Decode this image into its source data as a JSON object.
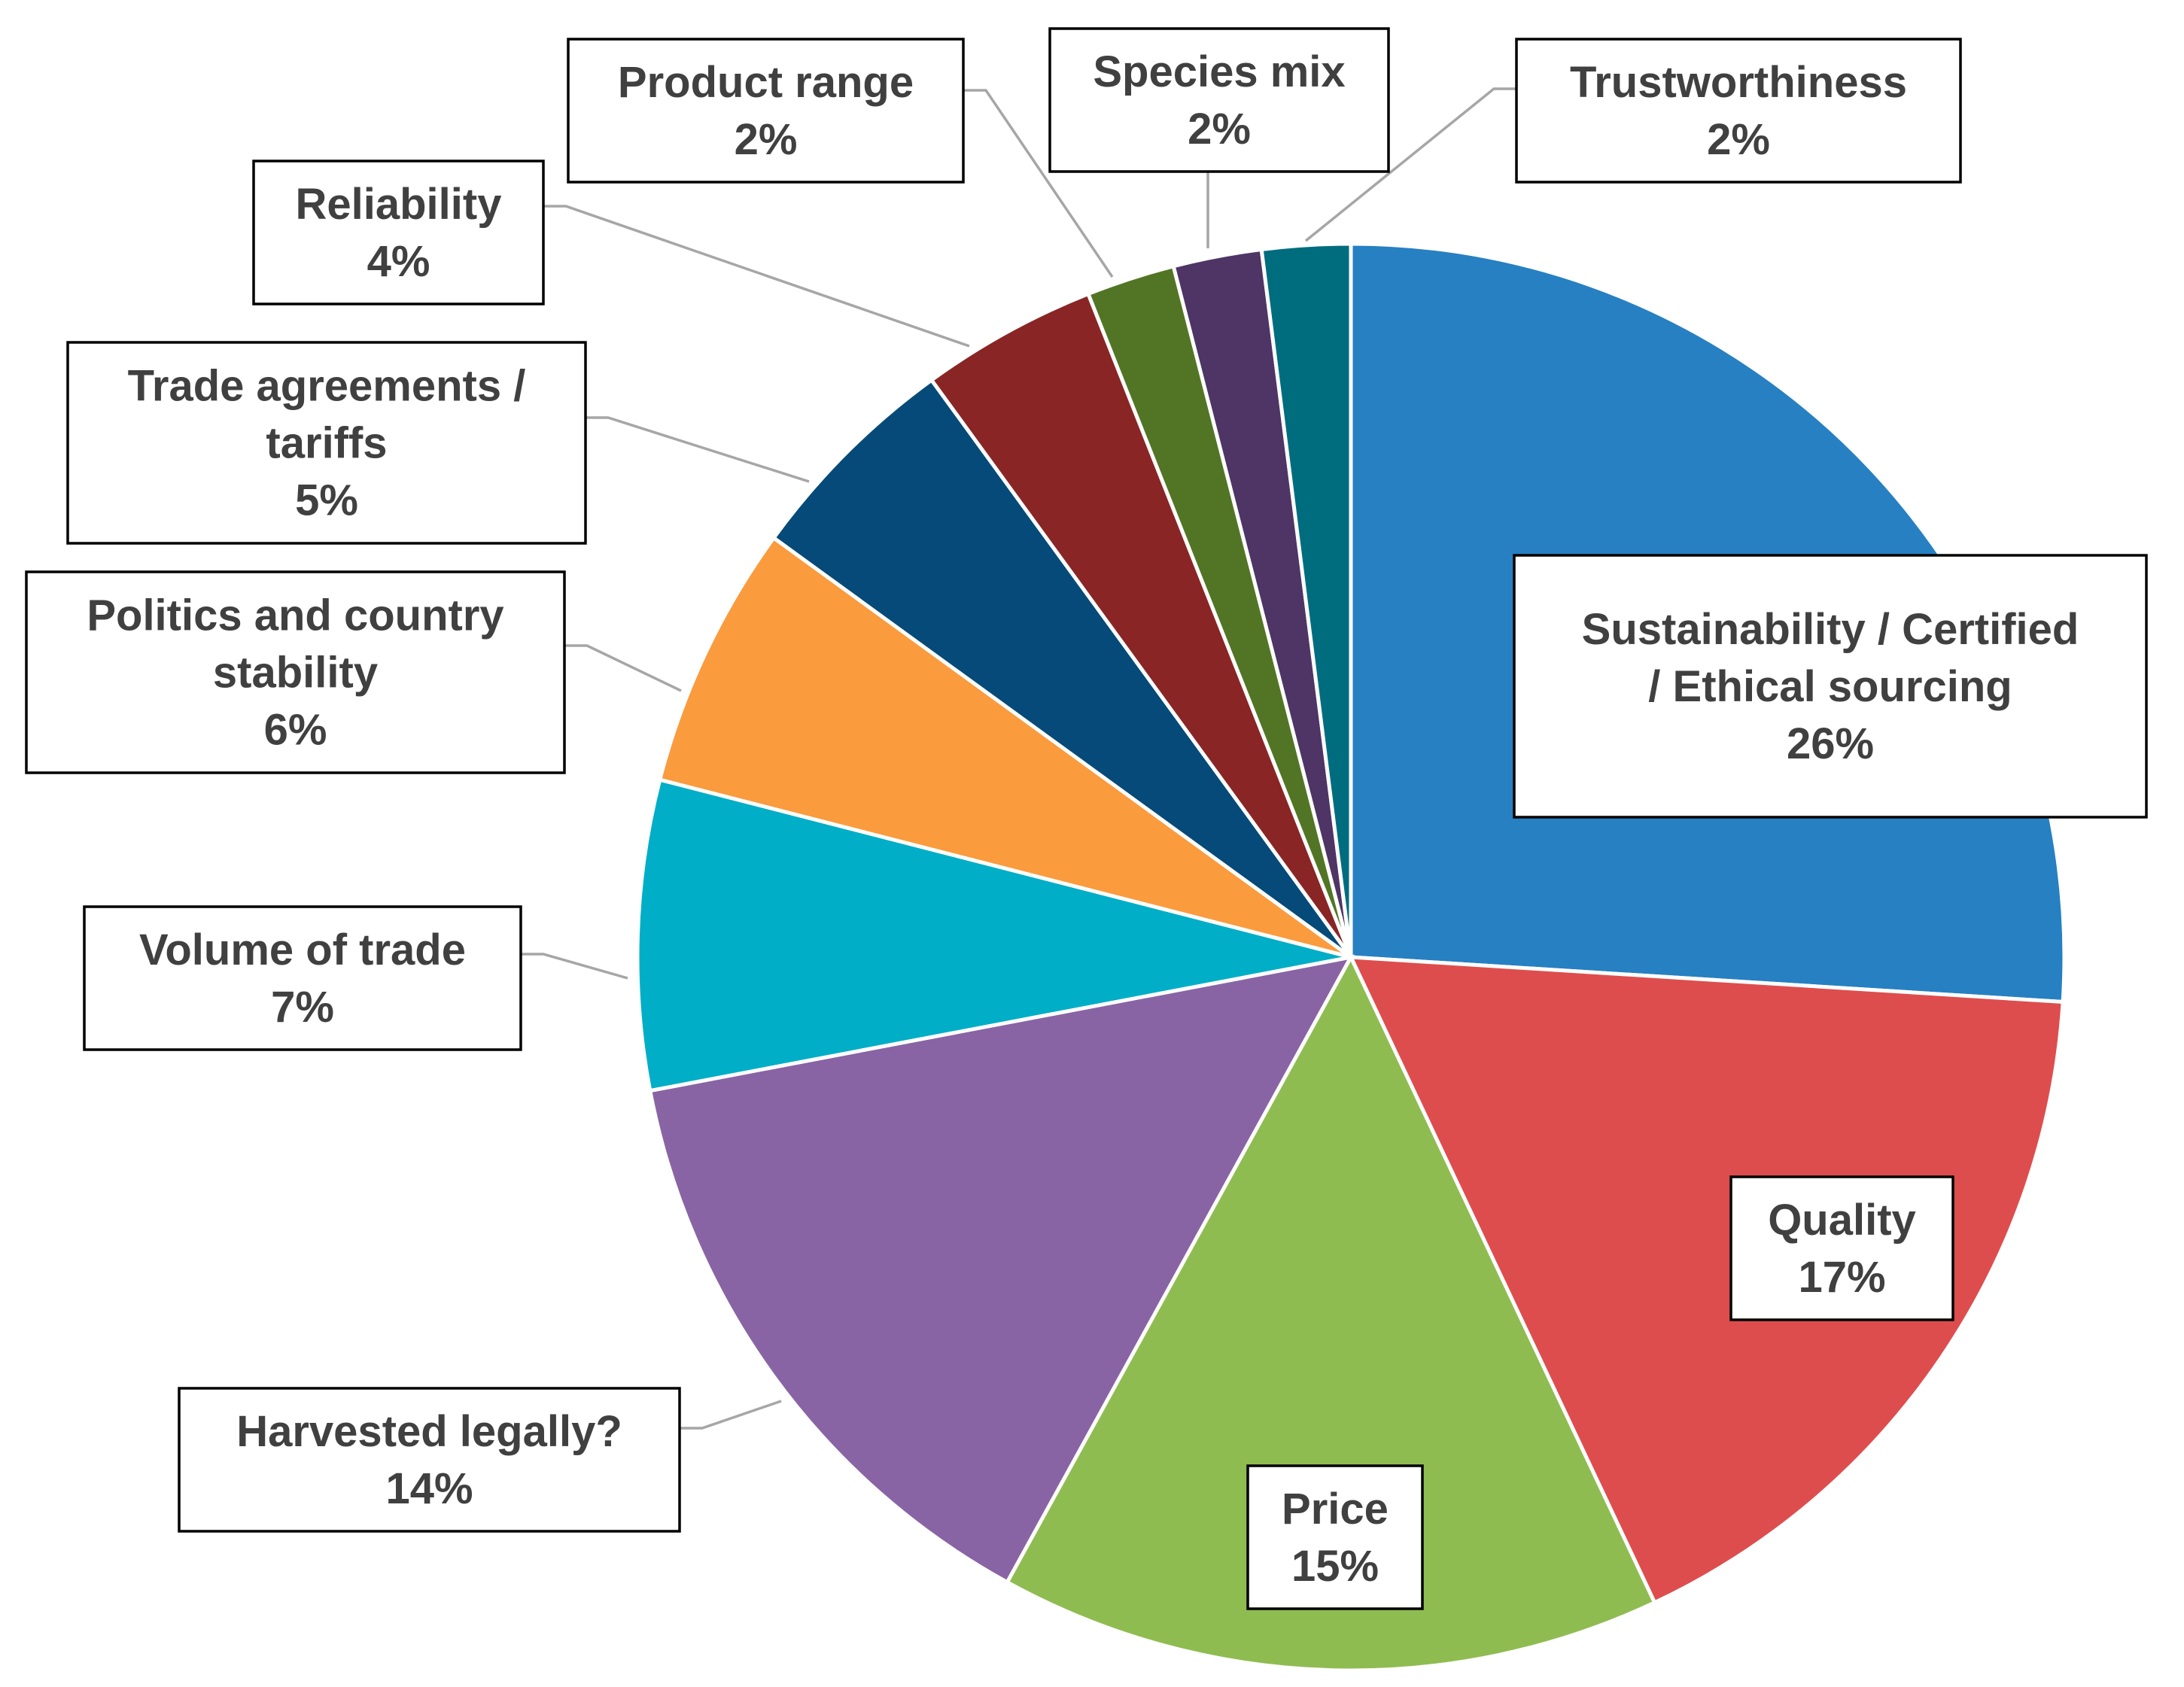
{
  "chart_data": {
    "type": "pie",
    "title": "",
    "start_angle_deg": 0,
    "direction": "clockwise",
    "slices": [
      {
        "label": [
          "Sustainability / Certified",
          "/ Ethical sourcing"
        ],
        "value": 26,
        "value_label": "26%",
        "color": "#2680c2",
        "leader": false
      },
      {
        "label": [
          "Quality"
        ],
        "value": 17,
        "value_label": "17%",
        "color": "#de4d4d",
        "leader": false
      },
      {
        "label": [
          "Price"
        ],
        "value": 15,
        "value_label": "15%",
        "color": "#8fbc50",
        "leader": false
      },
      {
        "label": [
          "Harvested legally?"
        ],
        "value": 14,
        "value_label": "14%",
        "color": "#8964a4",
        "leader": true
      },
      {
        "label": [
          "Volume of trade"
        ],
        "value": 7,
        "value_label": "7%",
        "color": "#00aec7",
        "leader": true
      },
      {
        "label": [
          "Politics and country",
          "stability"
        ],
        "value": 6,
        "value_label": "6%",
        "color": "#fa9b3e",
        "leader": true
      },
      {
        "label": [
          "Trade agreements /",
          "tariffs"
        ],
        "value": 5,
        "value_label": "5%",
        "color": "#054a78",
        "leader": true
      },
      {
        "label": [
          "Reliability"
        ],
        "value": 4,
        "value_label": "4%",
        "color": "#8a2525",
        "leader": true
      },
      {
        "label": [
          "Product range"
        ],
        "value": 2,
        "value_label": "2%",
        "color": "#527525",
        "leader": true
      },
      {
        "label": [
          "Species mix"
        ],
        "value": 2,
        "value_label": "2%",
        "color": "#4e3565",
        "leader": true
      },
      {
        "label": [
          "Trustworthiness"
        ],
        "value": 2,
        "value_label": "2%",
        "color": "#006d7f",
        "leader": true
      }
    ]
  }
}
